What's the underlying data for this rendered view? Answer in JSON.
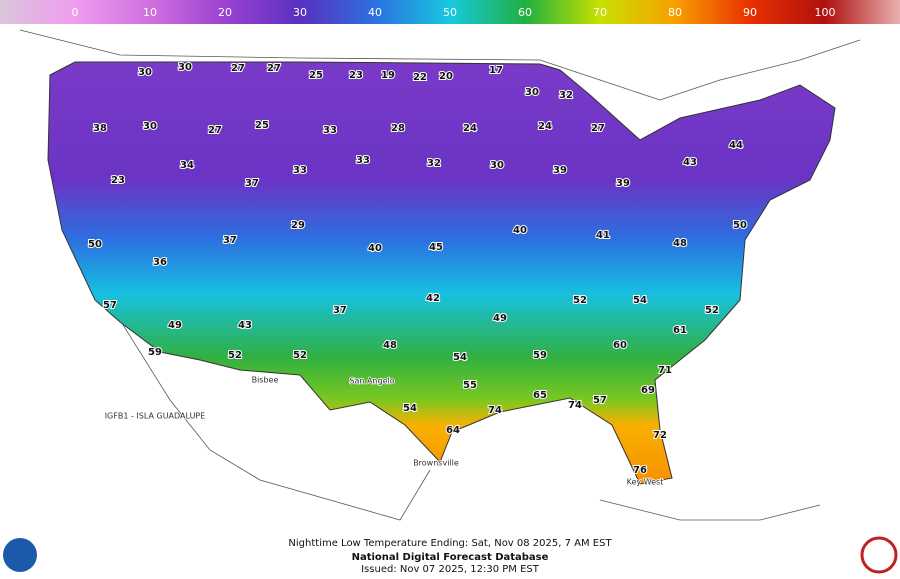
{
  "colorbar": {
    "range": [
      -10,
      110
    ],
    "ticks": [
      0,
      10,
      20,
      30,
      40,
      50,
      60,
      70,
      80,
      90,
      100
    ],
    "colors": [
      "#dcc6dc",
      "#ee9cee",
      "#d070e0",
      "#9a42d0",
      "#5a30c0",
      "#2c70e0",
      "#18c8e0",
      "#20b040",
      "#c8e000",
      "#f8a000",
      "#e83000",
      "#b01010",
      "#e8b0b0"
    ]
  },
  "temperatures": [
    30,
    30,
    27,
    27,
    25,
    23,
    19,
    22,
    20,
    17,
    30,
    32,
    38,
    30,
    27,
    25,
    33,
    28,
    24,
    24,
    27,
    23,
    34,
    37,
    33,
    33,
    32,
    30,
    39,
    39,
    43,
    44,
    50,
    36,
    37,
    29,
    40,
    45,
    40,
    41,
    48,
    50,
    57,
    49,
    43,
    37,
    42,
    49,
    52,
    54,
    52,
    59,
    52,
    52,
    48,
    54,
    59,
    60,
    61,
    54,
    55,
    65,
    57,
    69,
    74,
    74,
    72,
    76,
    64,
    71
  ],
  "places": [
    "Brownsville",
    "Key West",
    "San Angelo",
    "Bisbee",
    "IGFB1 - ISLA GUADALUPE"
  ],
  "footer": {
    "title": "Nighttime Low Temperature Ending: Sat, Nov 08 2025, 7 AM EST",
    "source": "National Digital Forecast Database",
    "issued": "Issued: Nov 07 2025, 12:30 PM EST"
  }
}
